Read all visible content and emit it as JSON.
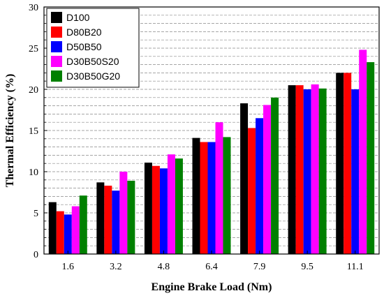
{
  "chart_data": {
    "type": "bar",
    "xlabel": "Engine Brake Load (Nm)",
    "ylabel": "Thermal Efficiency (%)",
    "ylim": [
      0,
      30
    ],
    "yticks": [
      "0",
      "5",
      "10",
      "15",
      "20",
      "25",
      "30"
    ],
    "categories": [
      "1.6",
      "3.2",
      "4.8",
      "6.4",
      "7.9",
      "9.5",
      "11.1"
    ],
    "grid": "horizontal dashed",
    "legend": "top-left",
    "series": [
      {
        "name": "D100",
        "color": "#000000",
        "values": [
          6.3,
          8.7,
          11.1,
          14.1,
          18.3,
          20.5,
          22.0
        ]
      },
      {
        "name": "D80B20",
        "color": "#ff0000",
        "values": [
          5.2,
          8.3,
          10.7,
          13.6,
          15.3,
          20.5,
          22.0
        ]
      },
      {
        "name": "D50B50",
        "color": "#0000ff",
        "values": [
          4.8,
          7.7,
          10.4,
          13.6,
          16.5,
          20.0,
          20.0
        ]
      },
      {
        "name": "D30B50S20",
        "color": "#ff00ff",
        "values": [
          5.8,
          10.0,
          12.1,
          16.0,
          18.1,
          20.6,
          24.8
        ]
      },
      {
        "name": "D30B50G20",
        "color": "#008000",
        "values": [
          7.1,
          8.9,
          11.6,
          14.2,
          19.0,
          20.1,
          23.3
        ]
      }
    ]
  }
}
